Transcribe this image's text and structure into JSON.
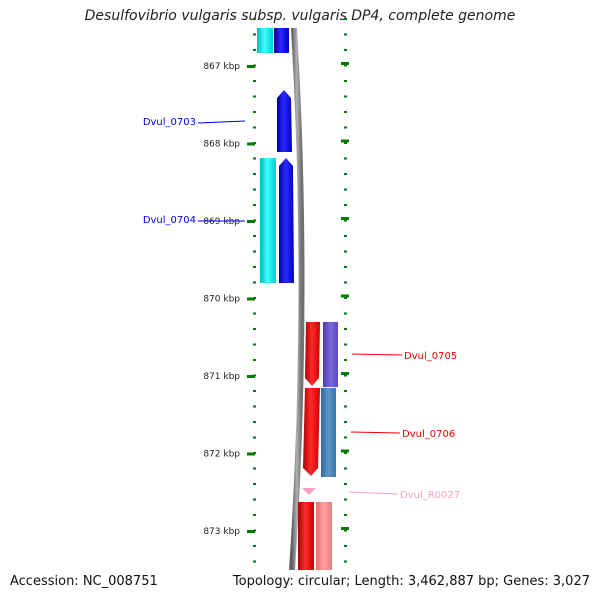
{
  "title": "Desulfovibrio vulgaris subsp. vulgaris DP4, complete genome",
  "footer": {
    "accession": "Accession: NC_008751",
    "info": "Topology: circular; Length: 3,462,887 bp; Genes: 3,027"
  },
  "colors": {
    "cds_forward": "#0000ee",
    "cds_reverse": "#ee0000",
    "orf_forward": "#00e5e5",
    "orf_reverse_purple": "#6a5acd",
    "orf_reverse_steel": "#4682b4",
    "rrna": "#f4a0c8",
    "backbone": "#808080",
    "tick": "#007a00"
  },
  "ticks": [
    {
      "label": "867 kbp"
    },
    {
      "label": "868 kbp"
    },
    {
      "label": "869 kbp"
    },
    {
      "label": "870 kbp"
    },
    {
      "label": "871 kbp"
    },
    {
      "label": "872 kbp"
    },
    {
      "label": "873 kbp"
    }
  ],
  "genes": [
    {
      "name": "Dvul_0703",
      "strand": "forward"
    },
    {
      "name": "Dvul_0704",
      "strand": "forward"
    },
    {
      "name": "Dvul_0705",
      "strand": "reverse"
    },
    {
      "name": "Dvul_0706",
      "strand": "reverse"
    },
    {
      "name": "Dvul_R0027",
      "strand": "reverse"
    }
  ]
}
